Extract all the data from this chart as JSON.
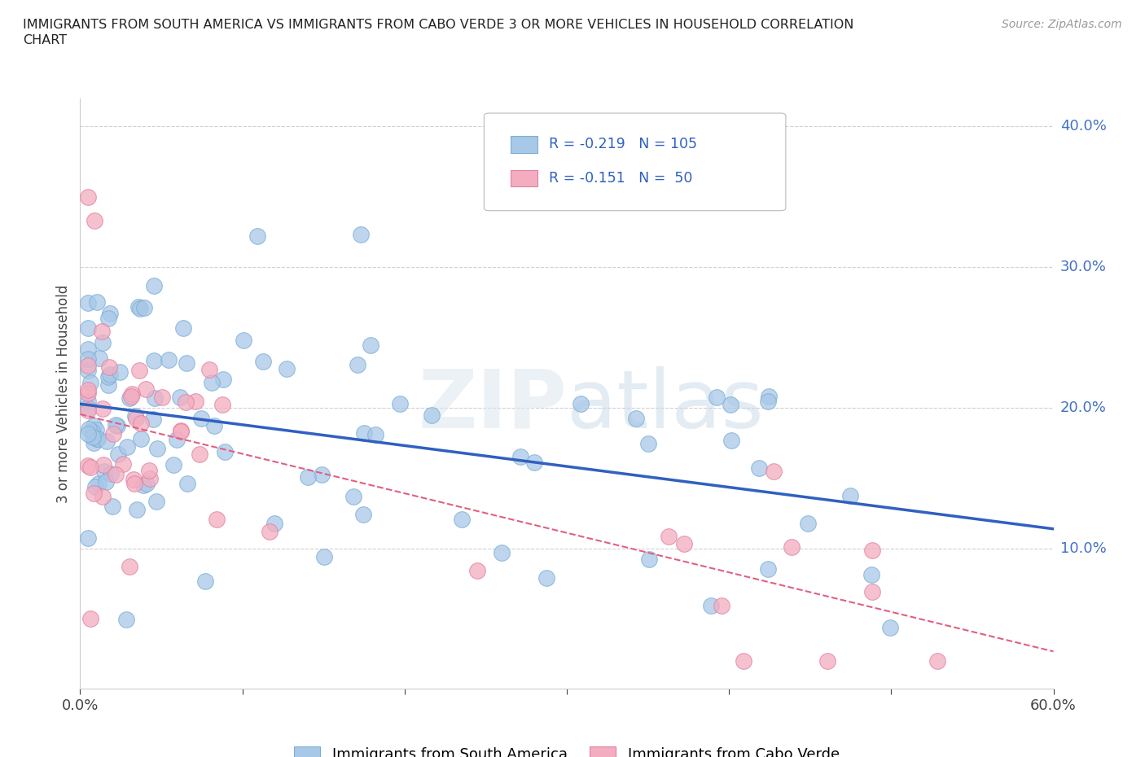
{
  "title_line1": "IMMIGRANTS FROM SOUTH AMERICA VS IMMIGRANTS FROM CABO VERDE 3 OR MORE VEHICLES IN HOUSEHOLD CORRELATION",
  "title_line2": "CHART",
  "source": "Source: ZipAtlas.com",
  "ylabel": "3 or more Vehicles in Household",
  "xlim": [
    0.0,
    0.6
  ],
  "ylim": [
    0.0,
    0.42
  ],
  "blue_color": "#a8c8e8",
  "blue_edge_color": "#7aaed4",
  "blue_line_color": "#3060c0",
  "pink_color": "#f4adc0",
  "pink_edge_color": "#e080a0",
  "pink_line_color": "#e06080",
  "legend_R1": "-0.219",
  "legend_N1": "105",
  "legend_R2": "-0.151",
  "legend_N2": "50",
  "watermark": "ZIPatlas",
  "ytick_color": "#4472c4",
  "grid_color": "#d0d0d0",
  "title_fontsize": 11.5,
  "tick_fontsize": 13,
  "ylabel_fontsize": 12
}
